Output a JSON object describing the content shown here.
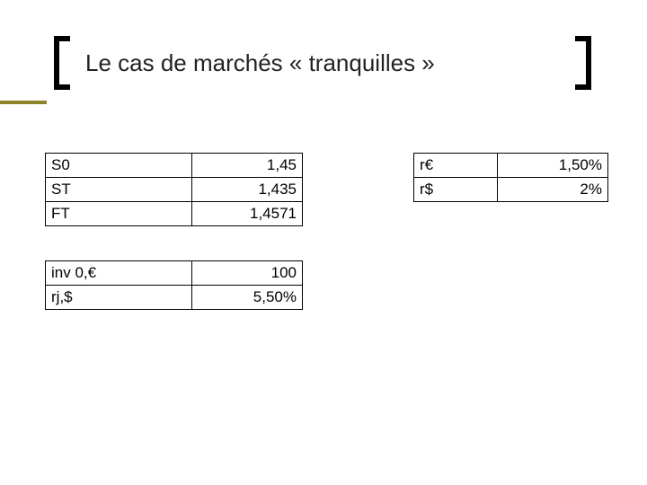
{
  "title": "Le cas de marchés « tranquilles »",
  "colors": {
    "accent": "#8d8329",
    "bracket": "#000000",
    "text": "#222222",
    "table_border": "#000000",
    "background": "#ffffff"
  },
  "tables": {
    "rates_spot_fwd": {
      "type": "table",
      "columns": [
        "label",
        "value"
      ],
      "col_align": [
        "left",
        "right"
      ],
      "rows": [
        [
          "S0",
          "1,45"
        ],
        [
          "ST",
          "1,435"
        ],
        [
          "FT",
          "1,4571"
        ]
      ]
    },
    "interest_rates": {
      "type": "table",
      "columns": [
        "label",
        "value"
      ],
      "col_align": [
        "left",
        "right"
      ],
      "rows": [
        [
          "r€",
          "1,50%"
        ],
        [
          "r$",
          "2%"
        ]
      ]
    },
    "investment": {
      "type": "table",
      "columns": [
        "label",
        "value"
      ],
      "col_align": [
        "left",
        "right"
      ],
      "rows": [
        [
          "inv 0,€",
          "100"
        ],
        [
          "rj,$",
          "5,50%"
        ]
      ]
    }
  }
}
